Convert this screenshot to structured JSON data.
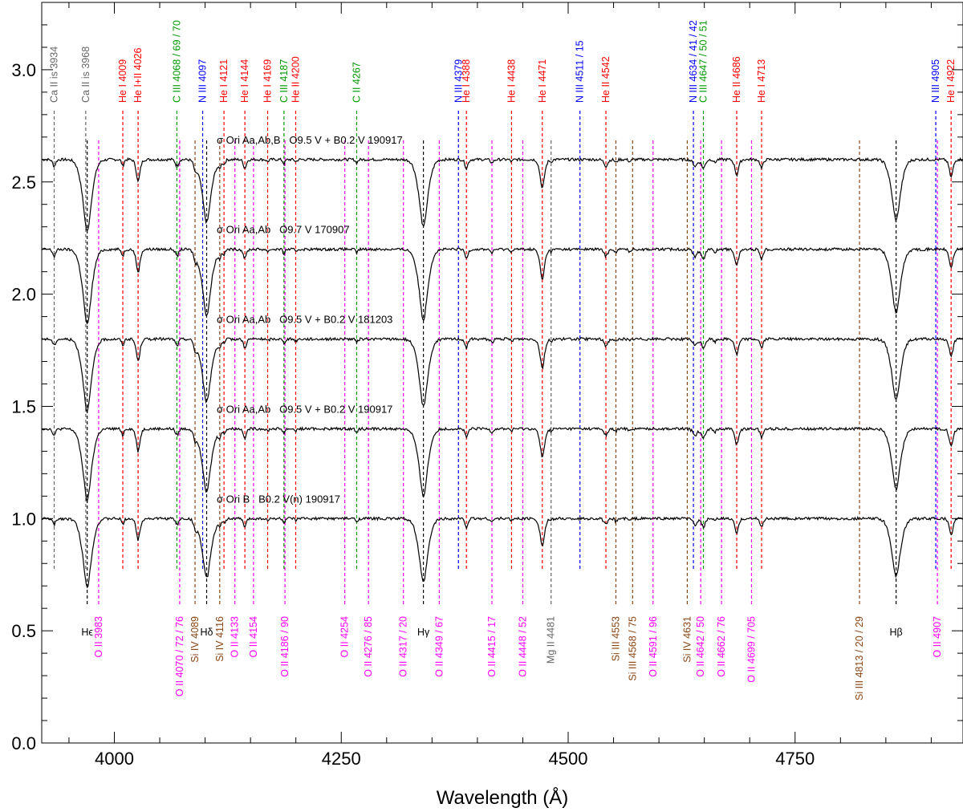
{
  "chart_data": {
    "type": "line",
    "title": "",
    "xlabel": "Wavelength (Å)",
    "ylabel": "",
    "xlim": [
      3920,
      4935
    ],
    "ylim": [
      0.0,
      3.3
    ],
    "x_ticks": [
      4000,
      4250,
      4500,
      4750
    ],
    "x_tick_labels": [
      "4000",
      "4250",
      "4500",
      "4750"
    ],
    "y_ticks": [
      0.0,
      0.5,
      1.0,
      1.5,
      2.0,
      2.5,
      3.0
    ],
    "y_tick_labels": [
      "0.0",
      "0.5",
      "1.0",
      "1.5",
      "2.0",
      "2.5",
      "3.0"
    ],
    "colors": {
      "He": "#ff0000",
      "N": "#0000ff",
      "C": "#009900",
      "O": "#ff00ff",
      "Si": "#8b4513",
      "Ca": "#666666",
      "Mg": "#666666",
      "H": "#000000"
    },
    "series": [
      {
        "name": "σ Ori Aa,Ab,B   O9.5 V + B0.2 V 190917",
        "offset": 2.6,
        "scale": 1.0
      },
      {
        "name": "σ Ori Aa,Ab   O9.7 V 170907",
        "offset": 2.2,
        "scale": 1.05
      },
      {
        "name": "σ Ori Aa,Ab   O9.5 V + B0.2 V 181203",
        "offset": 1.8,
        "scale": 1.0
      },
      {
        "name": "σ Ori Aa,Ab   O9.5 V + B0.2 V 190917",
        "offset": 1.4,
        "scale": 1.0
      },
      {
        "name": "σ Ori B   B0.2 V(n) 190917",
        "offset": 1.0,
        "scale": 0.95
      }
    ],
    "absorption_features": [
      {
        "x": 3933.7,
        "depth": 0.03,
        "width": 2
      },
      {
        "x": 3970.1,
        "depth": 0.32,
        "width": 6
      },
      {
        "x": 4009.3,
        "depth": 0.03,
        "width": 1.5
      },
      {
        "x": 4026.2,
        "depth": 0.1,
        "width": 2.5
      },
      {
        "x": 4068,
        "depth": 0.02,
        "width": 1.5
      },
      {
        "x": 4070,
        "depth": 0.02,
        "width": 1.5
      },
      {
        "x": 4089.3,
        "depth": 0.04,
        "width": 2
      },
      {
        "x": 4101.7,
        "depth": 0.28,
        "width": 6
      },
      {
        "x": 4116.1,
        "depth": 0.03,
        "width": 2
      },
      {
        "x": 4121,
        "depth": 0.02,
        "width": 1.5
      },
      {
        "x": 4143.8,
        "depth": 0.04,
        "width": 2
      },
      {
        "x": 4168.9,
        "depth": 0.01,
        "width": 1.5
      },
      {
        "x": 4186.9,
        "depth": 0.02,
        "width": 1.5
      },
      {
        "x": 4200,
        "depth": 0.01,
        "width": 1.5
      },
      {
        "x": 4267,
        "depth": 0.015,
        "width": 1.5
      },
      {
        "x": 4340.5,
        "depth": 0.3,
        "width": 6
      },
      {
        "x": 4387.9,
        "depth": 0.04,
        "width": 2
      },
      {
        "x": 4416,
        "depth": 0.015,
        "width": 2
      },
      {
        "x": 4437.6,
        "depth": 0.01,
        "width": 1.5
      },
      {
        "x": 4471.5,
        "depth": 0.13,
        "width": 3
      },
      {
        "x": 4481.2,
        "depth": 0.01,
        "width": 1.5
      },
      {
        "x": 4541.6,
        "depth": 0.03,
        "width": 2.5
      },
      {
        "x": 4552.6,
        "depth": 0.015,
        "width": 1.5
      },
      {
        "x": 4567.8,
        "depth": 0.01,
        "width": 1.5
      },
      {
        "x": 4640,
        "depth": 0.03,
        "width": 3
      },
      {
        "x": 4649,
        "depth": 0.04,
        "width": 2.5
      },
      {
        "x": 4661.6,
        "depth": 0.015,
        "width": 1.5
      },
      {
        "x": 4685.7,
        "depth": 0.07,
        "width": 2.5
      },
      {
        "x": 4713.1,
        "depth": 0.04,
        "width": 2
      },
      {
        "x": 4861.3,
        "depth": 0.27,
        "width": 6
      },
      {
        "x": 4921.9,
        "depth": 0.08,
        "width": 2.5
      }
    ],
    "top_labels": [
      {
        "text": "Ca II is 3934",
        "x": 3933.7,
        "element": "Ca"
      },
      {
        "text": "Ca II is 3968",
        "x": 3968.5,
        "element": "Ca"
      },
      {
        "text": "He I 4009",
        "x": 4009.3,
        "element": "He"
      },
      {
        "text": "He I+II 4026",
        "x": 4026.2,
        "element": "He"
      },
      {
        "text": "C III 4068 / 69 / 70",
        "x": 4068.9,
        "element": "C"
      },
      {
        "text": "N III 4097",
        "x": 4097.3,
        "element": "N"
      },
      {
        "text": "He I 4121",
        "x": 4120.8,
        "element": "He"
      },
      {
        "text": "He I 4144",
        "x": 4143.8,
        "element": "He"
      },
      {
        "text": "He I 4169",
        "x": 4168.9,
        "element": "He"
      },
      {
        "text": "C III 4187",
        "x": 4186.9,
        "element": "C"
      },
      {
        "text": "He II 4200",
        "x": 4199.8,
        "element": "He"
      },
      {
        "text": "C II 4267",
        "x": 4267.0,
        "element": "C"
      },
      {
        "text": "N III 4379",
        "x": 4379.1,
        "element": "N"
      },
      {
        "text": "He I 4388",
        "x": 4387.9,
        "element": "He"
      },
      {
        "text": "He I 4438",
        "x": 4437.6,
        "element": "He"
      },
      {
        "text": "He I 4471",
        "x": 4471.5,
        "element": "He"
      },
      {
        "text": "N III 4511 / 15",
        "x": 4513.0,
        "element": "N"
      },
      {
        "text": "He II 4542",
        "x": 4541.6,
        "element": "He"
      },
      {
        "text": "N III 4634 / 41 / 42",
        "x": 4638.0,
        "element": "N"
      },
      {
        "text": "C III 4647 / 50 / 51",
        "x": 4649.0,
        "element": "C"
      },
      {
        "text": "He II 4686",
        "x": 4685.7,
        "element": "He"
      },
      {
        "text": "He I 4713",
        "x": 4713.1,
        "element": "He"
      },
      {
        "text": "N III 4905",
        "x": 4905.0,
        "element": "N"
      },
      {
        "text": "He I 4922",
        "x": 4921.9,
        "element": "He"
      }
    ],
    "bottom_labels": [
      {
        "text": "Hϵ",
        "x": 3970.1,
        "element": "H"
      },
      {
        "text": "O II 3983",
        "x": 3982.7,
        "element": "O"
      },
      {
        "text": "O II 4070 / 72 / 76",
        "x": 4072.0,
        "element": "O"
      },
      {
        "text": "Si IV 4089",
        "x": 4088.9,
        "element": "Si"
      },
      {
        "text": "Hδ",
        "x": 4101.7,
        "element": "H"
      },
      {
        "text": "Si IV 4116",
        "x": 4116.1,
        "element": "Si"
      },
      {
        "text": "O II 4133",
        "x": 4132.8,
        "element": "O"
      },
      {
        "text": "O II 4154",
        "x": 4153.3,
        "element": "O"
      },
      {
        "text": "O II 4186 / 90",
        "x": 4188.0,
        "element": "O"
      },
      {
        "text": "O II 4254",
        "x": 4253.9,
        "element": "O"
      },
      {
        "text": "O II 4276 / 85",
        "x": 4280.0,
        "element": "O"
      },
      {
        "text": "O II 4317 / 20",
        "x": 4318.5,
        "element": "O"
      },
      {
        "text": "Hγ",
        "x": 4340.5,
        "element": "H"
      },
      {
        "text": "O II 4349 / 67",
        "x": 4358.0,
        "element": "O"
      },
      {
        "text": "O II 4415 / 17",
        "x": 4416.0,
        "element": "O"
      },
      {
        "text": "O II 4448 / 52",
        "x": 4450.0,
        "element": "O"
      },
      {
        "text": "Mg II 4481",
        "x": 4481.2,
        "element": "Mg"
      },
      {
        "text": "Si III 4553",
        "x": 4552.6,
        "element": "Si"
      },
      {
        "text": "Si III 4568 / 75",
        "x": 4571.0,
        "element": "Si"
      },
      {
        "text": "O II 4591 / 96",
        "x": 4593.5,
        "element": "O"
      },
      {
        "text": "Si IV 4631",
        "x": 4631.2,
        "element": "Si"
      },
      {
        "text": "O II 4642 / 50",
        "x": 4646.0,
        "element": "O"
      },
      {
        "text": "O II 4662 / 76",
        "x": 4669.0,
        "element": "O"
      },
      {
        "text": "O II 4699 / 705",
        "x": 4702.0,
        "element": "O"
      },
      {
        "text": "Si III 4813 / 20 / 29",
        "x": 4821.0,
        "element": "Si"
      },
      {
        "text": "Hβ",
        "x": 4861.3,
        "element": "H"
      },
      {
        "text": "O II 4907",
        "x": 4906.8,
        "element": "O"
      }
    ]
  }
}
